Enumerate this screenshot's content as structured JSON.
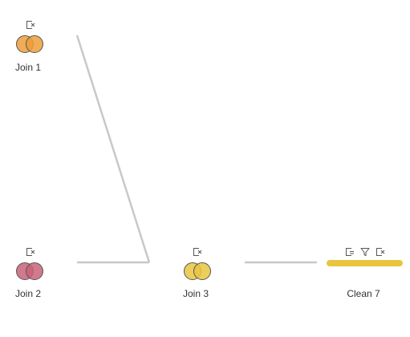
{
  "flow": {
    "nodes": [
      {
        "id": "join-1",
        "type": "join",
        "label": "Join 1",
        "color": "#ed9d3a",
        "icons": [
          "remove-field-icon"
        ]
      },
      {
        "id": "join-2",
        "type": "join",
        "label": "Join 2",
        "color": "#c96379",
        "icons": [
          "remove-field-icon"
        ]
      },
      {
        "id": "join-3",
        "type": "join",
        "label": "Join 3",
        "color": "#e9c53f",
        "icons": [
          "remove-field-icon"
        ]
      },
      {
        "id": "clean-7",
        "type": "clean",
        "label": "Clean 7",
        "color": "#e9c53f",
        "icons": [
          "calculated-field-icon",
          "filter-icon",
          "remove-field-icon"
        ]
      }
    ],
    "connections": [
      {
        "from": "join-1",
        "to": "join-3"
      },
      {
        "from": "join-2",
        "to": "join-3"
      },
      {
        "from": "join-3",
        "to": "clean-7"
      }
    ],
    "connector_color": "#c8c8c8"
  }
}
